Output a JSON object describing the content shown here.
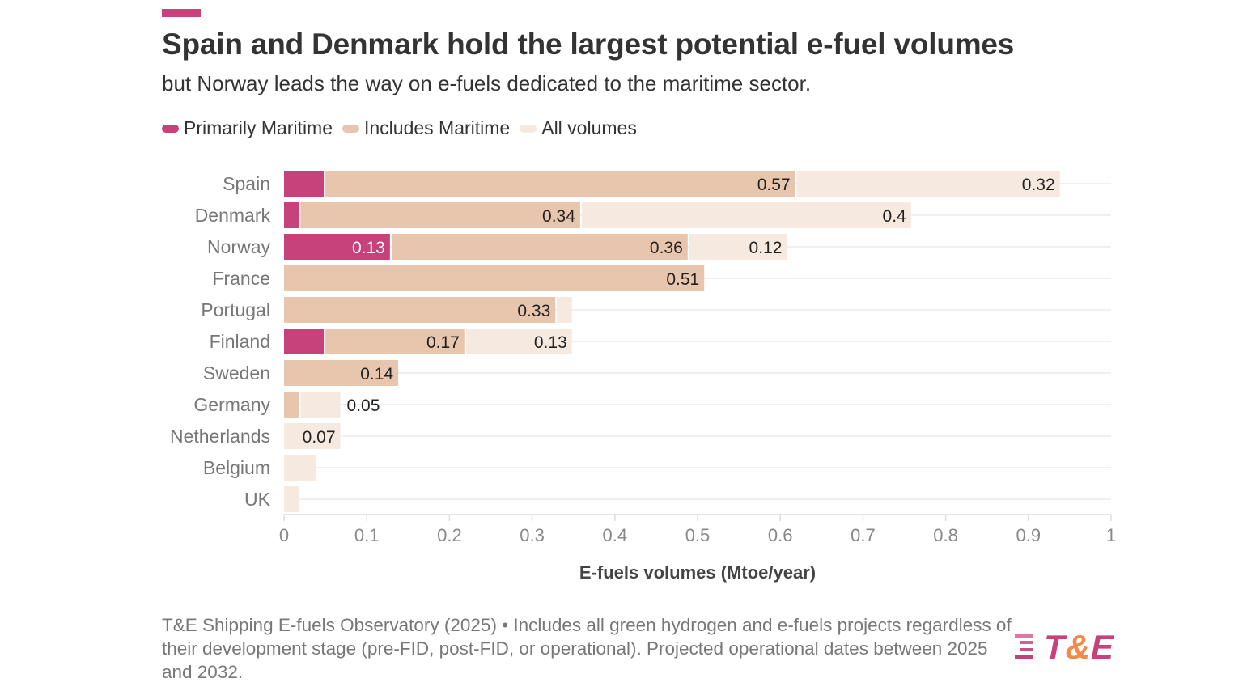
{
  "header": {
    "title": "Spain and Denmark hold the largest potential e-fuel volumes",
    "subtitle": "but Norway leads the way on e-fuels dedicated to the maritime sector."
  },
  "chart_data": {
    "type": "bar",
    "orientation": "horizontal",
    "stacked": true,
    "title": "Spain and Denmark hold the largest potential e-fuel volumes",
    "xlabel": "E-fuels volumes (Mtoe/year)",
    "ylabel": "",
    "xlim": [
      0,
      1
    ],
    "xticks": [
      "0",
      "0.1",
      "0.2",
      "0.3",
      "0.4",
      "0.5",
      "0.6",
      "0.7",
      "0.8",
      "0.9",
      "1"
    ],
    "grid": true,
    "legend_position": "top-left",
    "categories": [
      "Spain",
      "Denmark",
      "Norway",
      "France",
      "Portugal",
      "Finland",
      "Sweden",
      "Germany",
      "Netherlands",
      "Belgium",
      "UK"
    ],
    "series": [
      {
        "name": "Primarily Maritime",
        "color": "#c7417b",
        "values": [
          0.05,
          0.02,
          0.13,
          0,
          0,
          0.05,
          0,
          0,
          0,
          0,
          0
        ],
        "labels": [
          null,
          null,
          "0.13",
          null,
          null,
          null,
          null,
          null,
          null,
          null,
          null
        ]
      },
      {
        "name": "Includes Maritime",
        "color": "#e8c6ad",
        "values": [
          0.57,
          0.34,
          0.36,
          0.51,
          0.33,
          0.17,
          0.14,
          0.02,
          0,
          0,
          0
        ],
        "labels": [
          "0.57",
          "0.34",
          "0.36",
          "0.51",
          "0.33",
          "0.17",
          "0.14",
          null,
          null,
          null,
          null
        ]
      },
      {
        "name": "All volumes",
        "color": "#f5e9e0",
        "values": [
          0.32,
          0.4,
          0.12,
          0,
          0.02,
          0.13,
          0,
          0.05,
          0.07,
          0.04,
          0.02
        ],
        "labels": [
          "0.32",
          "0.4",
          "0.12",
          null,
          null,
          "0.13",
          null,
          "0.05",
          "0.07",
          null,
          null
        ]
      }
    ]
  },
  "footer": {
    "source": "T&E Shipping E-fuels Observatory (2025) • Includes all green hydrogen and e-fuels projects regardless of their development stage (pre-FID, post-FID, or operational). Projected operational dates between 2025 and 2032.",
    "logo_text": "T&E"
  }
}
